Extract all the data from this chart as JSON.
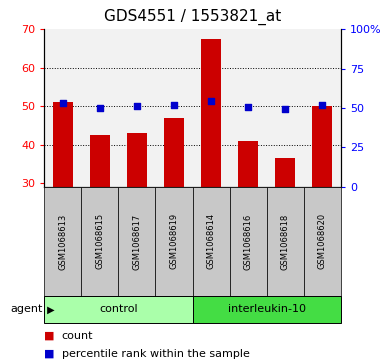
{
  "title": "GDS4551 / 1553821_at",
  "samples": [
    "GSM1068613",
    "GSM1068615",
    "GSM1068617",
    "GSM1068619",
    "GSM1068614",
    "GSM1068616",
    "GSM1068618",
    "GSM1068620"
  ],
  "counts": [
    51,
    42.5,
    43,
    47,
    67.5,
    41,
    36.5,
    50
  ],
  "percentile_ranks": [
    53,
    50,
    51,
    52,
    54.5,
    50.5,
    49.5,
    52
  ],
  "ylim_left": [
    29,
    70
  ],
  "ylim_right": [
    0,
    100
  ],
  "yticks_left": [
    30,
    40,
    50,
    60,
    70
  ],
  "yticks_right": [
    0,
    25,
    50,
    75,
    100
  ],
  "ytick_right_labels": [
    "0",
    "25",
    "50",
    "75",
    "100%"
  ],
  "bar_color": "#CC0000",
  "dot_color": "#0000CC",
  "bar_bottom": 29,
  "box_color": "#C8C8C8",
  "ctrl_color": "#AAFFAA",
  "il_color": "#44DD44",
  "legend_count": "count",
  "legend_percentile": "percentile rank within the sample",
  "title_fontsize": 11,
  "tick_fontsize": 8,
  "sample_fontsize": 6,
  "group_fontsize": 8,
  "legend_fontsize": 8
}
